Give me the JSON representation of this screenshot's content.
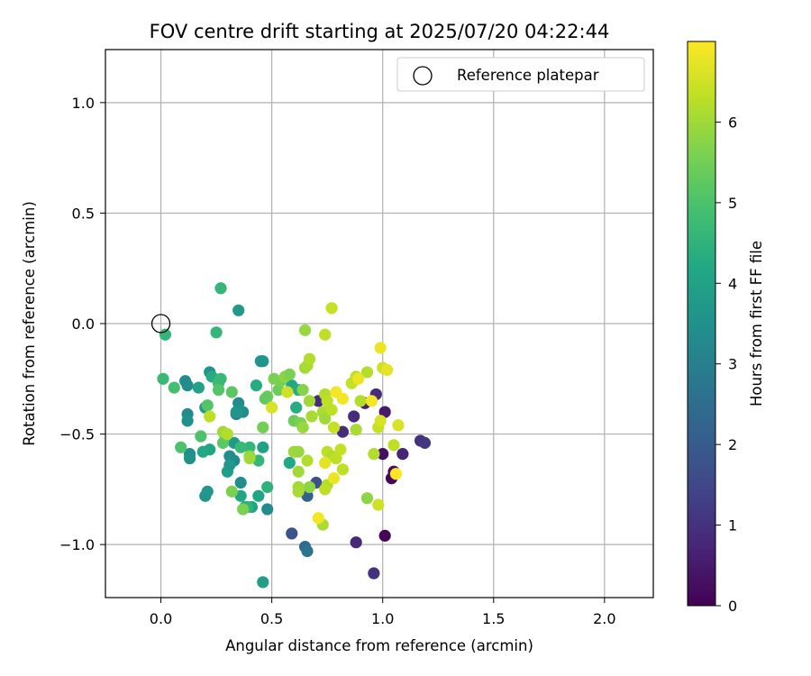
{
  "chart_data": {
    "type": "scatter",
    "title": "FOV centre drift starting at 2025/07/20 04:22:44",
    "xlabel": "Angular distance from reference (arcmin)",
    "ylabel": "Rotation from reference (arcmin)",
    "xlim": [
      -0.25,
      2.22
    ],
    "ylim": [
      -1.24,
      1.24
    ],
    "xticks": [
      0.0,
      0.5,
      1.0,
      1.5,
      2.0
    ],
    "xtick_labels": [
      "0.0",
      "0.5",
      "1.0",
      "1.5",
      "2.0"
    ],
    "yticks": [
      -1.0,
      -0.5,
      0.0,
      0.5,
      1.0
    ],
    "ytick_labels": [
      "−1.0",
      "−0.5",
      "0.0",
      "0.5",
      "1.0"
    ],
    "grid": true,
    "legend": {
      "location": "upper-right",
      "entries": [
        "Reference platepar"
      ]
    },
    "colorbar": {
      "label": "Hours from first FF file",
      "colormap": "viridis",
      "range": [
        0,
        7
      ],
      "ticks": [
        0,
        1,
        2,
        3,
        4,
        5,
        6
      ],
      "tick_labels": [
        "0",
        "1",
        "2",
        "3",
        "4",
        "5",
        "6"
      ]
    },
    "reference_point": {
      "x": 0.0,
      "y": 0.0
    },
    "points": [
      [
        1.01,
        -0.96,
        0.1
      ],
      [
        1.04,
        -0.7,
        0.1
      ],
      [
        1.05,
        -0.67,
        0.2
      ],
      [
        1.09,
        -0.59,
        0.7
      ],
      [
        1.0,
        -0.59,
        0.3
      ],
      [
        1.01,
        -0.4,
        0.5
      ],
      [
        0.97,
        -0.32,
        0.9
      ],
      [
        0.92,
        -0.36,
        0.6
      ],
      [
        0.82,
        -0.49,
        0.9
      ],
      [
        0.87,
        -0.42,
        0.9
      ],
      [
        1.17,
        -0.53,
        1.0
      ],
      [
        1.19,
        -0.54,
        1.1
      ],
      [
        0.88,
        -0.99,
        0.8
      ],
      [
        0.96,
        -1.13,
        1.0
      ],
      [
        0.71,
        -0.35,
        0.9
      ],
      [
        0.7,
        -0.72,
        1.7
      ],
      [
        0.66,
        -0.78,
        2.2
      ],
      [
        0.59,
        -0.95,
        1.8
      ],
      [
        0.65,
        -1.01,
        2.4
      ],
      [
        0.66,
        -1.03,
        2.7
      ],
      [
        0.48,
        -0.84,
        3.3
      ],
      [
        0.36,
        -0.72,
        3.4
      ],
      [
        0.33,
        -0.62,
        3.3
      ],
      [
        0.31,
        -0.6,
        3.4
      ],
      [
        0.34,
        -0.41,
        3.2
      ],
      [
        0.35,
        -0.36,
        3.3
      ],
      [
        0.37,
        -0.4,
        3.4
      ],
      [
        0.35,
        -0.39,
        3.5
      ],
      [
        0.34,
        -0.4,
        3.6
      ],
      [
        0.11,
        -0.26,
        3.4
      ],
      [
        0.12,
        -0.28,
        3.4
      ],
      [
        0.12,
        -0.41,
        3.3
      ],
      [
        0.12,
        -0.44,
        3.5
      ],
      [
        0.13,
        -0.59,
        3.4
      ],
      [
        0.13,
        -0.61,
        3.5
      ],
      [
        0.2,
        -0.78,
        3.6
      ],
      [
        0.21,
        -0.76,
        3.7
      ],
      [
        0.22,
        -0.22,
        3.6
      ],
      [
        0.35,
        0.06,
        3.7
      ],
      [
        0.45,
        -0.17,
        3.7
      ],
      [
        0.46,
        -0.17,
        3.6
      ],
      [
        0.46,
        -1.17,
        3.9
      ],
      [
        0.3,
        -0.67,
        3.9
      ],
      [
        0.31,
        -0.64,
        3.7
      ],
      [
        0.33,
        -0.54,
        3.8
      ],
      [
        0.2,
        -0.38,
        3.8
      ],
      [
        0.17,
        -0.29,
        4.0
      ],
      [
        0.22,
        -0.57,
        4.1
      ],
      [
        0.19,
        -0.58,
        4.2
      ],
      [
        0.23,
        -0.24,
        4.3
      ],
      [
        0.36,
        -0.78,
        4.1
      ],
      [
        0.38,
        -0.83,
        4.0
      ],
      [
        0.41,
        -0.83,
        4.1
      ],
      [
        0.44,
        -0.78,
        4.1
      ],
      [
        0.46,
        -0.56,
        4.0
      ],
      [
        0.58,
        -0.63,
        4.2
      ],
      [
        0.61,
        -0.38,
        4.3
      ],
      [
        0.59,
        -0.28,
        4.2
      ],
      [
        0.62,
        -0.3,
        4.3
      ],
      [
        0.43,
        -0.28,
        4.3
      ],
      [
        0.48,
        -0.74,
        4.5
      ],
      [
        0.44,
        -0.62,
        4.6
      ],
      [
        0.4,
        -0.56,
        4.6
      ],
      [
        0.36,
        -0.56,
        4.7
      ],
      [
        0.39,
        -0.83,
        4.5
      ],
      [
        0.26,
        -0.27,
        4.8
      ],
      [
        0.27,
        -0.25,
        4.7
      ],
      [
        0.25,
        -0.04,
        4.6
      ],
      [
        0.27,
        0.16,
        4.6
      ],
      [
        0.02,
        -0.05,
        4.6
      ],
      [
        0.01,
        -0.25,
        4.7
      ],
      [
        0.06,
        -0.29,
        4.9
      ],
      [
        0.09,
        -0.56,
        5.0
      ],
      [
        0.18,
        -0.51,
        5.0
      ],
      [
        0.21,
        -0.37,
        5.1
      ],
      [
        0.26,
        -0.3,
        5.1
      ],
      [
        0.28,
        -0.54,
        5.2
      ],
      [
        0.29,
        -0.51,
        5.3
      ],
      [
        0.32,
        -0.31,
        5.2
      ],
      [
        0.32,
        -0.76,
        5.6
      ],
      [
        0.37,
        -0.84,
        5.6
      ],
      [
        0.4,
        -0.6,
        5.8
      ],
      [
        0.46,
        -0.47,
        5.5
      ],
      [
        0.48,
        -0.33,
        5.4
      ],
      [
        0.47,
        -0.34,
        5.3
      ],
      [
        0.51,
        -0.25,
        5.6
      ],
      [
        0.53,
        -0.3,
        5.4
      ],
      [
        0.54,
        -0.26,
        5.6
      ],
      [
        0.56,
        -0.24,
        5.8
      ],
      [
        0.58,
        -0.23,
        5.6
      ],
      [
        0.6,
        -0.44,
        5.4
      ],
      [
        0.63,
        -0.45,
        5.6
      ],
      [
        0.6,
        -0.58,
        6.0
      ],
      [
        0.62,
        -0.67,
        6.0
      ],
      [
        0.62,
        -0.58,
        5.9
      ],
      [
        0.64,
        -0.47,
        5.9
      ],
      [
        0.64,
        -0.3,
        5.7
      ],
      [
        0.65,
        -0.2,
        6.0
      ],
      [
        0.66,
        -0.19,
        6.1
      ],
      [
        0.65,
        -0.03,
        5.9
      ],
      [
        0.67,
        -0.16,
        6.2
      ],
      [
        0.67,
        -0.35,
        6.0
      ],
      [
        0.68,
        -0.42,
        6.1
      ],
      [
        0.66,
        -0.62,
        6.2
      ],
      [
        0.67,
        -0.74,
        5.8
      ],
      [
        0.62,
        -0.74,
        6.0
      ],
      [
        0.62,
        -0.76,
        6.1
      ],
      [
        0.73,
        -0.4,
        6.1
      ],
      [
        0.74,
        -0.43,
        6.0
      ],
      [
        0.74,
        -0.32,
        6.2
      ],
      [
        0.75,
        -0.58,
        6.3
      ],
      [
        0.75,
        -0.73,
        6.2
      ],
      [
        0.73,
        -0.91,
        6.1
      ],
      [
        0.74,
        -0.75,
        6.3
      ],
      [
        0.75,
        -0.35,
        6.3
      ],
      [
        0.77,
        -0.39,
        6.3
      ],
      [
        0.78,
        -0.47,
        6.4
      ],
      [
        0.77,
        -0.6,
        6.2
      ],
      [
        0.79,
        -0.61,
        6.3
      ],
      [
        0.81,
        -0.57,
        6.4
      ],
      [
        0.82,
        -0.66,
        6.3
      ],
      [
        0.86,
        -0.27,
        6.4
      ],
      [
        0.88,
        -0.48,
        6.1
      ],
      [
        0.88,
        -0.24,
        6.3
      ],
      [
        0.9,
        -0.35,
        6.2
      ],
      [
        0.93,
        -0.22,
        6.2
      ],
      [
        0.93,
        -0.79,
        5.8
      ],
      [
        0.96,
        -0.59,
        6.2
      ],
      [
        0.98,
        -0.47,
        6.4
      ],
      [
        0.98,
        -0.82,
        6.5
      ],
      [
        0.99,
        -0.44,
        6.6
      ],
      [
        1.0,
        -0.2,
        6.5
      ],
      [
        1.02,
        -0.21,
        6.7
      ],
      [
        1.05,
        -0.55,
        6.3
      ],
      [
        1.07,
        -0.46,
        6.6
      ],
      [
        0.99,
        -0.11,
        6.8
      ],
      [
        0.77,
        0.07,
        6.4
      ],
      [
        0.74,
        -0.05,
        6.3
      ],
      [
        0.71,
        -0.88,
        6.9
      ],
      [
        0.74,
        -0.63,
        6.7
      ],
      [
        0.78,
        -0.7,
        6.8
      ],
      [
        0.79,
        -0.31,
        6.9
      ],
      [
        0.82,
        -0.34,
        6.9
      ],
      [
        0.89,
        -0.25,
        6.8
      ],
      [
        1.06,
        -0.68,
        7.0
      ],
      [
        0.95,
        -0.35,
        6.9
      ],
      [
        0.5,
        -0.38,
        6.6
      ],
      [
        0.57,
        -0.31,
        6.5
      ],
      [
        0.22,
        -0.42,
        6.3
      ],
      [
        0.28,
        -0.49,
        6.0
      ],
      [
        0.4,
        -0.61,
        6.0
      ],
      [
        0.3,
        -0.5,
        6.2
      ]
    ]
  }
}
